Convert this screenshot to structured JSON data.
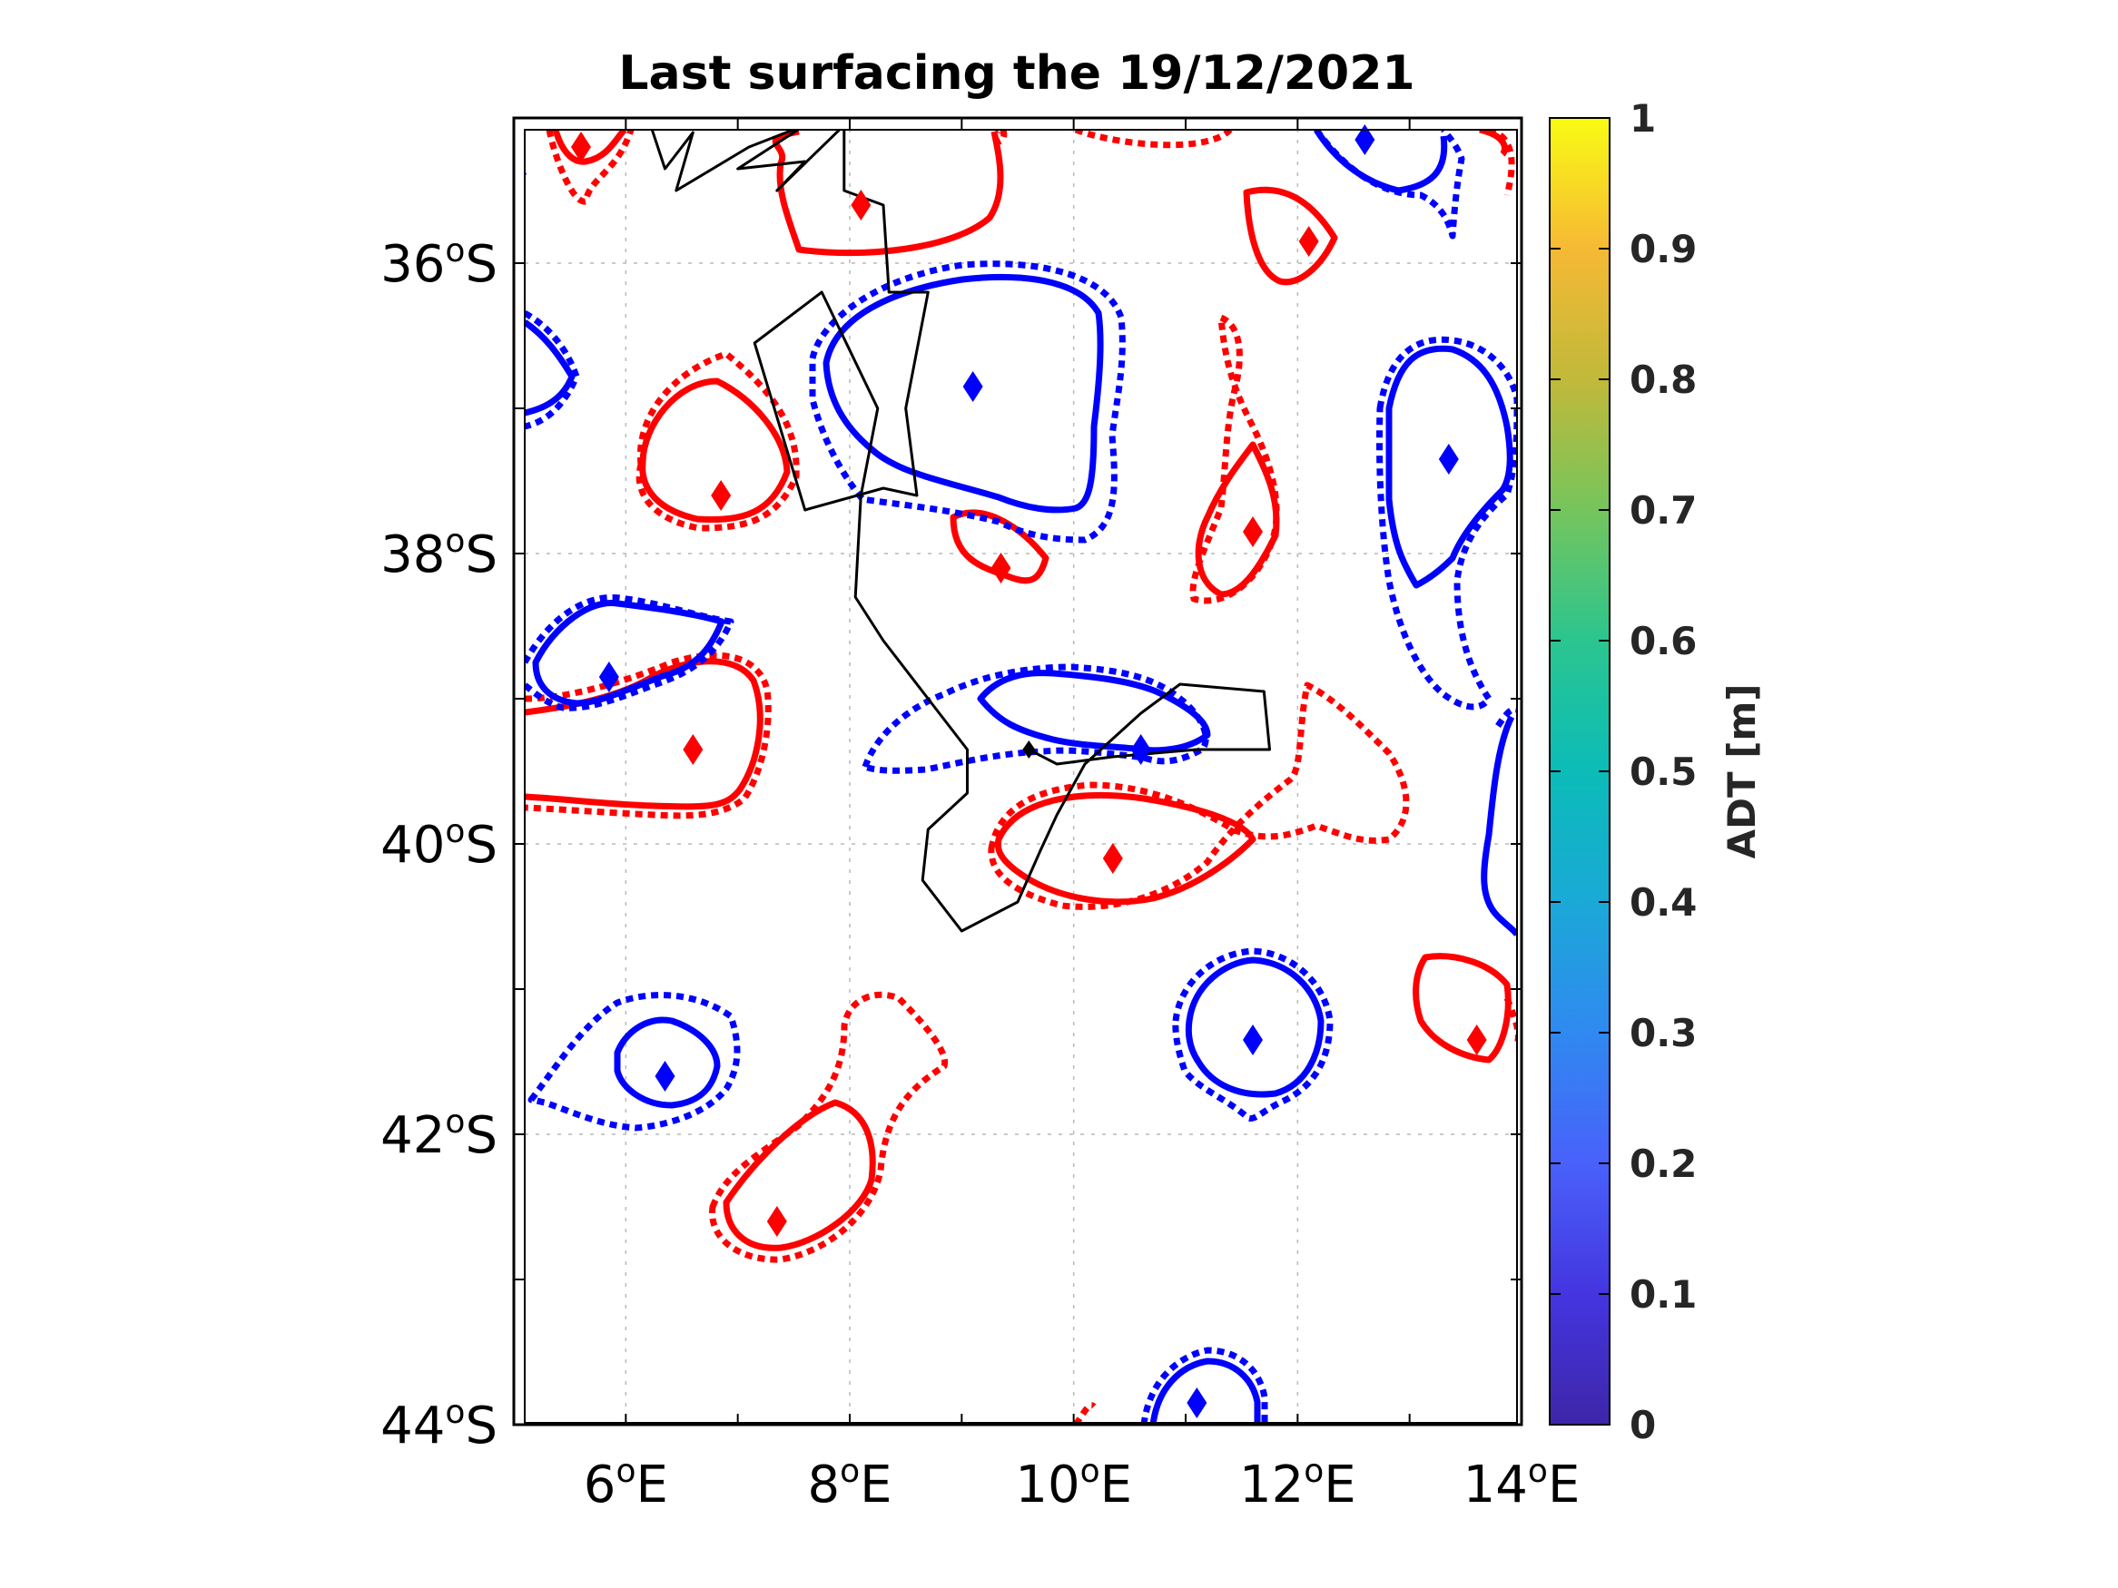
{
  "title": "Last surfacing the 19/12/2021",
  "map": {
    "lon_range": [
      5,
      14
    ],
    "lat_range": [
      -44,
      -35
    ],
    "lat_ticks": [
      {
        "num": "36",
        "deg": "o",
        "hem": "S",
        "value": -36
      },
      {
        "num": "38",
        "deg": "o",
        "hem": "S",
        "value": -38
      },
      {
        "num": "40",
        "deg": "o",
        "hem": "S",
        "value": -40
      },
      {
        "num": "42",
        "deg": "o",
        "hem": "S",
        "value": -42
      },
      {
        "num": "44",
        "deg": "o",
        "hem": "S",
        "value": -44
      }
    ],
    "lon_ticks": [
      {
        "num": "6",
        "deg": "o",
        "hem": "E",
        "value": 6
      },
      {
        "num": "8",
        "deg": "o",
        "hem": "E",
        "value": 8
      },
      {
        "num": "10",
        "deg": "o",
        "hem": "E",
        "value": 10
      },
      {
        "num": "12",
        "deg": "o",
        "hem": "E",
        "value": 12
      },
      {
        "num": "14",
        "deg": "o",
        "hem": "E",
        "value": 14
      }
    ],
    "colors": {
      "anticyclonic": "#ff0000",
      "cyclonic": "#0000ff",
      "track": "#000000"
    },
    "last_surfacing": {
      "lon": 9.6,
      "lat": -39.35
    },
    "eddy_centers": [
      {
        "color": "red",
        "lon": 5.6,
        "lat": -35.2
      },
      {
        "color": "red",
        "lon": 8.1,
        "lat": -35.6
      },
      {
        "color": "red",
        "lon": 12.1,
        "lat": -35.85
      },
      {
        "color": "red",
        "lon": 6.85,
        "lat": -37.6
      },
      {
        "color": "red",
        "lon": 9.35,
        "lat": -38.1
      },
      {
        "color": "red",
        "lon": 11.6,
        "lat": -37.85
      },
      {
        "color": "red",
        "lon": 6.6,
        "lat": -39.35
      },
      {
        "color": "red",
        "lon": 10.35,
        "lat": -40.1
      },
      {
        "color": "red",
        "lon": 13.6,
        "lat": -41.35
      },
      {
        "color": "red",
        "lon": 7.35,
        "lat": -42.6
      },
      {
        "color": "blue",
        "lon": 12.6,
        "lat": -35.15
      },
      {
        "color": "blue",
        "lon": 9.1,
        "lat": -36.85
      },
      {
        "color": "blue",
        "lon": 13.35,
        "lat": -37.35
      },
      {
        "color": "blue",
        "lon": 5.85,
        "lat": -38.85
      },
      {
        "color": "blue",
        "lon": 10.6,
        "lat": -39.35
      },
      {
        "color": "blue",
        "lon": 11.6,
        "lat": -41.35
      },
      {
        "color": "blue",
        "lon": 6.35,
        "lat": -41.6
      },
      {
        "color": "blue",
        "lon": 11.1,
        "lat": -43.85
      }
    ],
    "float_track": [
      [
        6.2,
        -35.0
      ],
      [
        6.35,
        -35.35
      ],
      [
        6.6,
        -35.1
      ],
      [
        6.45,
        -35.5
      ],
      [
        7.1,
        -35.2
      ],
      [
        7.6,
        -35.05
      ],
      [
        7.0,
        -35.35
      ],
      [
        7.6,
        -35.3
      ],
      [
        7.35,
        -35.5
      ],
      [
        7.95,
        -35.05
      ],
      [
        7.95,
        -35.5
      ],
      [
        8.3,
        -35.6
      ],
      [
        8.35,
        -36.2
      ],
      [
        8.7,
        -36.2
      ],
      [
        8.6,
        -36.6
      ],
      [
        8.5,
        -37.0
      ],
      [
        8.6,
        -37.6
      ],
      [
        8.3,
        -37.55
      ],
      [
        7.6,
        -37.7
      ],
      [
        7.15,
        -36.55
      ],
      [
        7.75,
        -36.2
      ],
      [
        8.25,
        -37.0
      ],
      [
        8.1,
        -37.6
      ],
      [
        8.05,
        -38.3
      ],
      [
        8.3,
        -38.6
      ],
      [
        8.7,
        -39.0
      ],
      [
        9.05,
        -39.35
      ],
      [
        9.05,
        -39.65
      ],
      [
        8.7,
        -39.9
      ],
      [
        8.65,
        -40.25
      ],
      [
        9.0,
        -40.6
      ],
      [
        9.5,
        -40.4
      ],
      [
        9.7,
        -40.05
      ],
      [
        9.85,
        -39.8
      ],
      [
        10.1,
        -39.45
      ],
      [
        10.6,
        -39.1
      ],
      [
        10.95,
        -38.9
      ],
      [
        11.7,
        -38.95
      ],
      [
        11.75,
        -39.35
      ],
      [
        11.1,
        -39.35
      ],
      [
        10.35,
        -39.4
      ],
      [
        9.85,
        -39.45
      ],
      [
        9.6,
        -39.35
      ]
    ]
  },
  "colorbar": {
    "label": "ADT [m]",
    "range": [
      0,
      1
    ],
    "ticks": [
      "0",
      "0.1",
      "0.2",
      "0.3",
      "0.4",
      "0.5",
      "0.6",
      "0.7",
      "0.8",
      "0.9",
      "1"
    ],
    "colors": [
      "#3e26a8",
      "#4435e0",
      "#4961fa",
      "#3089f0",
      "#1aa9d7",
      "#0bbcb8",
      "#2bc58f",
      "#75c55c",
      "#c1b93a",
      "#f6b934",
      "#f9fb14"
    ]
  }
}
